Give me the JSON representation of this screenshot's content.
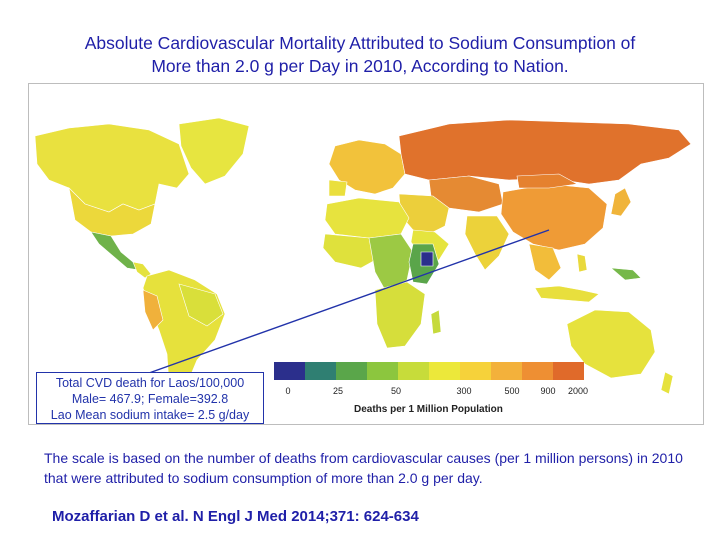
{
  "title": {
    "line1": "Absolute Cardiovascular Mortality Attributed to Sodium Consumption of",
    "line2": "More than 2.0 g per Day in 2010, According to Nation."
  },
  "callout": {
    "line1": "Total CVD death for Laos/100,000",
    "line2": "Male= 467.9;   Female=392.8",
    "line3": "Lao Mean sodium intake= 2.5 g/day"
  },
  "legend": {
    "title": "Deaths per 1 Million Population",
    "ticks": [
      "0",
      "25",
      "50",
      "300",
      "500",
      "900",
      "2000"
    ],
    "colors": [
      "#2b2f8c",
      "#2f7f72",
      "#5aa64a",
      "#8cc63e",
      "#c7dc3a",
      "#ece83a",
      "#f6d23a",
      "#f3b13b",
      "#ee8f33",
      "#e06a2a"
    ]
  },
  "description": "The scale is based on the number of deaths from cardiovascular causes (per 1 million persons) in 2010 that were attributed to sodium consumption of more than 2.0 g per day.",
  "citation": "Mozaffarian D et al. N Engl J Med 2014;371: 624-634",
  "colors": {
    "text": "#1f1fa8",
    "callout_line": "#2233aa",
    "ocean": "#ffffff"
  }
}
